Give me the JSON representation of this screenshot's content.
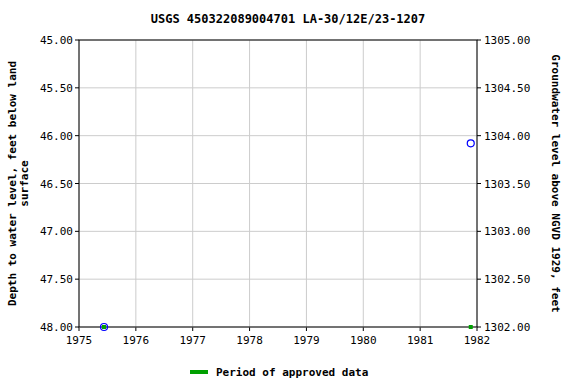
{
  "chart_data": {
    "type": "scatter",
    "title": "USGS 450322089004701 LA-30/12E/23-1207",
    "y_label": [
      "Depth to water level, feet below land",
      "surface"
    ],
    "y2_label": "Groundwater level above NGVD 1929, feet",
    "x": [
      1975.44,
      1981.89
    ],
    "xlim": [
      1975,
      1982
    ],
    "xticks": [
      1975,
      1976,
      1977,
      1978,
      1979,
      1980,
      1981,
      1982
    ],
    "ylim": [
      48,
      45
    ],
    "yticks": [
      {
        "value": 45,
        "label": "45.00"
      },
      {
        "value": 45.5,
        "label": "45.50"
      },
      {
        "value": 46,
        "label": "46.00"
      },
      {
        "value": 46.5,
        "label": "46.50"
      },
      {
        "value": 47,
        "label": "47.00"
      },
      {
        "value": 47.5,
        "label": "47.50"
      },
      {
        "value": 48,
        "label": "48.00"
      }
    ],
    "y2lim": [
      1302,
      1305
    ],
    "y2ticks": [
      {
        "value": 1302,
        "label": "1302.00"
      },
      {
        "value": 1302.5,
        "label": "1302.50"
      },
      {
        "value": 1303,
        "label": "1303.00"
      },
      {
        "value": 1303.5,
        "label": "1303.50"
      },
      {
        "value": 1304,
        "label": "1304.00"
      },
      {
        "value": 1304.5,
        "label": "1304.50"
      },
      {
        "value": 1305,
        "label": "1305.00"
      }
    ],
    "grid": true,
    "legend": "bottom",
    "series": [
      {
        "color": "#0000ff",
        "marker": "circle",
        "values": [
          48.0,
          46.08
        ]
      },
      {
        "name": "Period of approved data",
        "color": "#00a000",
        "marker": "square",
        "values": [
          48.0,
          48.0
        ]
      }
    ]
  }
}
